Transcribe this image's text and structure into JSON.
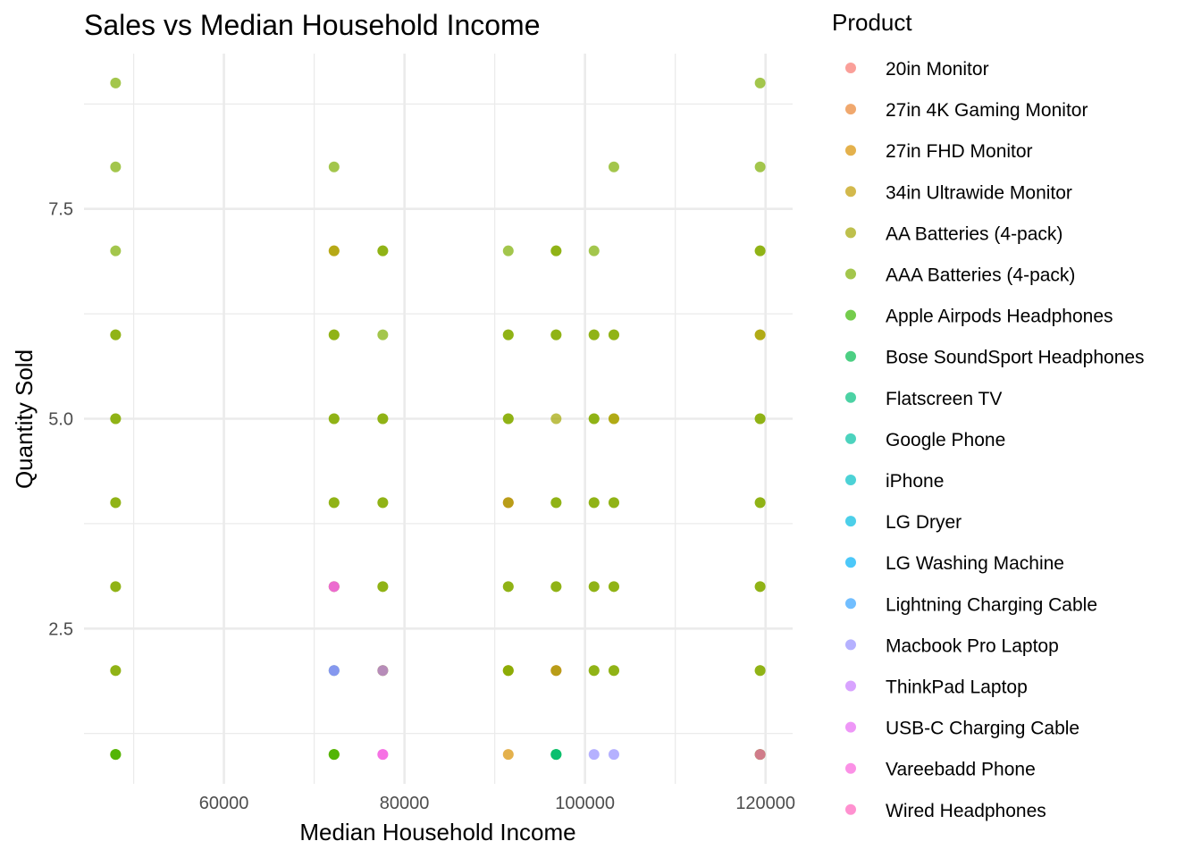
{
  "chart_data": {
    "type": "scatter",
    "title": "Sales vs Median Household Income",
    "xlabel": "Median Household Income",
    "ylabel": "Quantity Sold",
    "xlim": [
      44500,
      123000
    ],
    "ylim": [
      0.65,
      9.35
    ],
    "x_ticks": [
      60000,
      80000,
      100000,
      120000
    ],
    "x_tick_labels": [
      "60000",
      "80000",
      "100000",
      "120000"
    ],
    "y_ticks": [
      2.5,
      5.0,
      7.5
    ],
    "y_tick_labels": [
      "2.5",
      "5.0",
      "7.5"
    ],
    "grid": true,
    "legend": {
      "title": "Product",
      "position": "right"
    },
    "series": [
      {
        "name": "20in Monitor",
        "color": "#F8766D",
        "points": [
          [
            91500,
            4
          ],
          [
            96800,
            2
          ]
        ]
      },
      {
        "name": "27in 4K Gaming Monitor",
        "color": "#EA8331",
        "points": [
          [
            91500,
            4
          ],
          [
            96800,
            2
          ]
        ]
      },
      {
        "name": "27in FHD Monitor",
        "color": "#D89000",
        "points": [
          [
            72200,
            7
          ],
          [
            91500,
            1
          ],
          [
            91500,
            2
          ]
        ]
      },
      {
        "name": "34in Ultrawide Monitor",
        "color": "#C09B00",
        "points": [
          [
            103200,
            5
          ],
          [
            119400,
            6
          ]
        ]
      },
      {
        "name": "AA Batteries (4-pack)",
        "color": "#A3A500",
        "points": [
          [
            48000,
            1
          ],
          [
            48000,
            2
          ],
          [
            48000,
            3
          ],
          [
            48000,
            4
          ],
          [
            48000,
            5
          ],
          [
            48000,
            6
          ],
          [
            72200,
            1
          ],
          [
            72200,
            2
          ],
          [
            72200,
            3
          ],
          [
            72200,
            4
          ],
          [
            72200,
            5
          ],
          [
            72200,
            6
          ],
          [
            72200,
            7
          ],
          [
            77600,
            2
          ],
          [
            77600,
            3
          ],
          [
            77600,
            4
          ],
          [
            77600,
            5
          ],
          [
            77600,
            7
          ],
          [
            91500,
            2
          ],
          [
            91500,
            3
          ],
          [
            91500,
            4
          ],
          [
            91500,
            5
          ],
          [
            91500,
            6
          ],
          [
            96800,
            2
          ],
          [
            96800,
            3
          ],
          [
            96800,
            4
          ],
          [
            96800,
            5
          ],
          [
            96800,
            6
          ],
          [
            96800,
            7
          ],
          [
            101000,
            2
          ],
          [
            101000,
            3
          ],
          [
            101000,
            4
          ],
          [
            101000,
            5
          ],
          [
            101000,
            6
          ],
          [
            103200,
            2
          ],
          [
            103200,
            3
          ],
          [
            103200,
            4
          ],
          [
            103200,
            5
          ],
          [
            103200,
            6
          ],
          [
            119400,
            1
          ],
          [
            119400,
            2
          ],
          [
            119400,
            3
          ],
          [
            119400,
            4
          ],
          [
            119400,
            5
          ],
          [
            119400,
            6
          ],
          [
            119400,
            7
          ]
        ]
      },
      {
        "name": "AAA Batteries (4-pack)",
        "color": "#7CAE00",
        "points": [
          [
            48000,
            1
          ],
          [
            48000,
            2
          ],
          [
            48000,
            3
          ],
          [
            48000,
            4
          ],
          [
            48000,
            5
          ],
          [
            48000,
            6
          ],
          [
            48000,
            7
          ],
          [
            48000,
            8
          ],
          [
            48000,
            9
          ],
          [
            72200,
            1
          ],
          [
            72200,
            3
          ],
          [
            72200,
            4
          ],
          [
            72200,
            5
          ],
          [
            72200,
            6
          ],
          [
            72200,
            8
          ],
          [
            77600,
            2
          ],
          [
            77600,
            3
          ],
          [
            77600,
            4
          ],
          [
            77600,
            5
          ],
          [
            77600,
            6
          ],
          [
            77600,
            7
          ],
          [
            91500,
            2
          ],
          [
            91500,
            3
          ],
          [
            91500,
            5
          ],
          [
            91500,
            6
          ],
          [
            91500,
            7
          ],
          [
            96800,
            3
          ],
          [
            96800,
            4
          ],
          [
            96800,
            6
          ],
          [
            96800,
            7
          ],
          [
            101000,
            2
          ],
          [
            101000,
            3
          ],
          [
            101000,
            4
          ],
          [
            101000,
            5
          ],
          [
            101000,
            6
          ],
          [
            101000,
            7
          ],
          [
            103200,
            2
          ],
          [
            103200,
            3
          ],
          [
            103200,
            4
          ],
          [
            103200,
            6
          ],
          [
            103200,
            8
          ],
          [
            119400,
            2
          ],
          [
            119400,
            3
          ],
          [
            119400,
            4
          ],
          [
            119400,
            5
          ],
          [
            119400,
            7
          ],
          [
            119400,
            8
          ],
          [
            119400,
            9
          ]
        ]
      },
      {
        "name": "Apple Airpods Headphones",
        "color": "#39B600",
        "points": [
          [
            48000,
            1
          ],
          [
            72200,
            1
          ],
          [
            96800,
            1
          ],
          [
            119400,
            1
          ]
        ]
      },
      {
        "name": "Bose SoundSport Headphones",
        "color": "#00BB4E",
        "points": [
          [
            96800,
            1
          ]
        ]
      },
      {
        "name": "Flatscreen TV",
        "color": "#00BF7D",
        "points": [
          [
            96800,
            1
          ]
        ]
      },
      {
        "name": "Google Phone",
        "color": "#00C1A3",
        "points": []
      },
      {
        "name": "iPhone",
        "color": "#00BFC4",
        "points": []
      },
      {
        "name": "LG Dryer",
        "color": "#00BAE0",
        "points": []
      },
      {
        "name": "LG Washing Machine",
        "color": "#00B0F6",
        "points": []
      },
      {
        "name": "Lightning Charging Cable",
        "color": "#35A2FF",
        "points": [
          [
            72200,
            2
          ]
        ]
      },
      {
        "name": "Macbook Pro Laptop",
        "color": "#9590FF",
        "points": [
          [
            72200,
            2
          ],
          [
            101000,
            1
          ],
          [
            103200,
            1
          ]
        ]
      },
      {
        "name": "ThinkPad Laptop",
        "color": "#C77CFF",
        "points": [
          [
            77600,
            2
          ]
        ]
      },
      {
        "name": "USB-C Charging Cable",
        "color": "#E76BF3",
        "points": [
          [
            72200,
            3
          ],
          [
            77600,
            1
          ]
        ]
      },
      {
        "name": "Vareebadd Phone",
        "color": "#FA62DB",
        "points": [
          [
            72200,
            3
          ],
          [
            77600,
            1
          ]
        ]
      },
      {
        "name": "Wired Headphones",
        "color": "#FF62BC",
        "points": [
          [
            119400,
            1
          ]
        ]
      }
    ]
  }
}
